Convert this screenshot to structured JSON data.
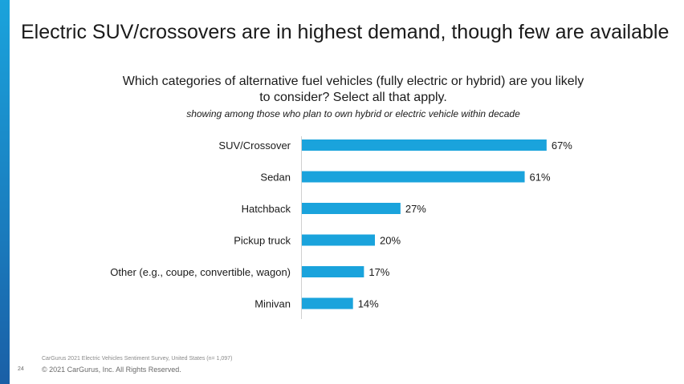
{
  "slide": {
    "title": "Electric SUV/crossovers are in highest demand, though few are available",
    "page_number": "24",
    "source_note": "CarGurus 2021 Electric Vehicles Sentiment Survey, United States (n= 1,097)",
    "copyright": "© 2021 CarGurus, Inc.  All Rights Reserved."
  },
  "chart_data": {
    "type": "bar",
    "orientation": "horizontal",
    "title": "Which categories of alternative fuel vehicles (fully electric or hybrid) are you likely to consider? Select all that apply.",
    "subtitle": "showing among those who plan to own hybrid or electric vehicle within decade",
    "categories": [
      "SUV/Crossover",
      "Sedan",
      "Hatchback",
      "Pickup truck",
      "Other (e.g., coupe, convertible, wagon)",
      "Minivan"
    ],
    "values": [
      67,
      61,
      27,
      20,
      17,
      14
    ],
    "value_labels": [
      "67%",
      "61%",
      "27%",
      "20%",
      "17%",
      "14%"
    ],
    "xlim": [
      0,
      100
    ],
    "grid": false,
    "bar_color": "#1aa3dc"
  }
}
